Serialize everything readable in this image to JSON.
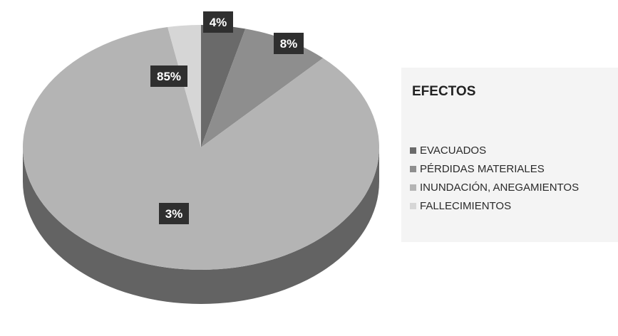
{
  "chart_data": {
    "type": "pie",
    "title": "",
    "legend_title": "EFECTOS",
    "legend_position": "right",
    "slices": [
      {
        "label": "EVACUADOS",
        "value": 4,
        "display": "4%",
        "color": "#6a6a6a"
      },
      {
        "label": "PÉRDIDAS MATERIALES",
        "value": 8,
        "display": "8%",
        "color": "#8e8e8e"
      },
      {
        "label": "INUNDACIÓN, ANEGAMIENTOS",
        "value": 85,
        "display": "85%",
        "color": "#b4b4b4"
      },
      {
        "label": "FALLECIMIENTOS",
        "value": 3,
        "display": "3%",
        "color": "#d6d6d6"
      }
    ]
  }
}
